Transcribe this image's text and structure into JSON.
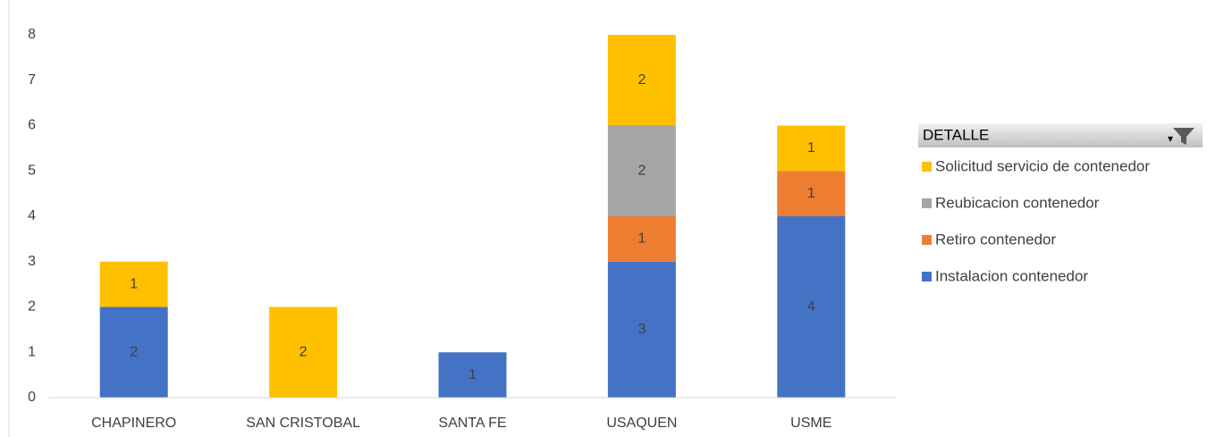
{
  "chart_data": {
    "type": "stacked_bar",
    "categories": [
      "CHAPINERO",
      "SAN CRISTOBAL",
      "SANTA FE",
      "USAQUEN",
      "USME"
    ],
    "series": [
      {
        "name": "Instalacion contenedor",
        "color": "#4472c4",
        "values": [
          2,
          null,
          1,
          3,
          4
        ]
      },
      {
        "name": "Retiro contenedor",
        "color": "#ed7d31",
        "values": [
          null,
          null,
          null,
          1,
          1
        ]
      },
      {
        "name": "Reubicacion contenedor",
        "color": "#a5a5a5",
        "values": [
          null,
          null,
          null,
          2,
          null
        ]
      },
      {
        "name": "Solicitud servicio de contenedor",
        "color": "#ffc000",
        "values": [
          1,
          2,
          null,
          2,
          1
        ]
      }
    ],
    "legend_title": "DETALLE",
    "legend_position": "right",
    "ylim": [
      0,
      8
    ],
    "yticks": [
      0,
      1,
      2,
      3,
      4,
      5,
      6,
      7,
      8
    ],
    "grid": false
  }
}
